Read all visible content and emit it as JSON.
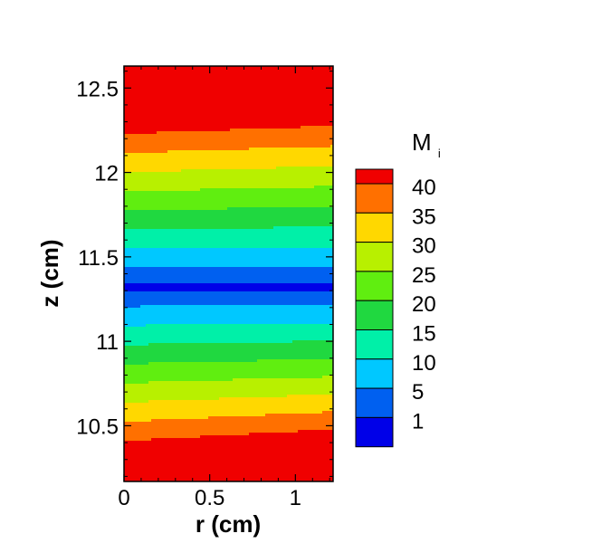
{
  "chart_data": {
    "type": "contour",
    "xlabel": "r (cm)",
    "ylabel": "z (cm)",
    "xlim": [
      0,
      1.22
    ],
    "ylim": [
      10.17,
      12.63
    ],
    "xticks": [
      {
        "value": 0,
        "label": "0"
      },
      {
        "value": 0.5,
        "label": "0.5"
      },
      {
        "value": 1,
        "label": "1"
      }
    ],
    "yticks": [
      {
        "value": 10.5,
        "label": "10.5"
      },
      {
        "value": 11,
        "label": "11"
      },
      {
        "value": 11.5,
        "label": "11.5"
      },
      {
        "value": 12,
        "label": "12"
      },
      {
        "value": 12.5,
        "label": "12.5"
      }
    ],
    "grid": false,
    "legend": {
      "title": "M",
      "title_subscript": "i",
      "placement": "right",
      "labels": [
        "1",
        "5",
        "10",
        "15",
        "20",
        "25",
        "30",
        "35",
        "40"
      ],
      "levels": [
        {
          "min": 0,
          "max": 1,
          "color": "#0000e8"
        },
        {
          "min": 1,
          "max": 5,
          "color": "#0060f0"
        },
        {
          "min": 5,
          "max": 10,
          "color": "#00c8ff"
        },
        {
          "min": 10,
          "max": 15,
          "color": "#00f0a8"
        },
        {
          "min": 15,
          "max": 20,
          "color": "#20d840"
        },
        {
          "min": 20,
          "max": 25,
          "color": "#60ee10"
        },
        {
          "min": 25,
          "max": 30,
          "color": "#b8f000"
        },
        {
          "min": 30,
          "max": 35,
          "color": "#ffd800"
        },
        {
          "min": 35,
          "max": 40,
          "color": "#ff7000"
        },
        {
          "min": 40,
          "max": 45,
          "color": "#f00000"
        }
      ]
    },
    "field": {
      "z_center": 11.32,
      "slope_below": 44,
      "slope_above": 44,
      "tilt_below": 0.06,
      "tilt_above": -0.04
    }
  }
}
